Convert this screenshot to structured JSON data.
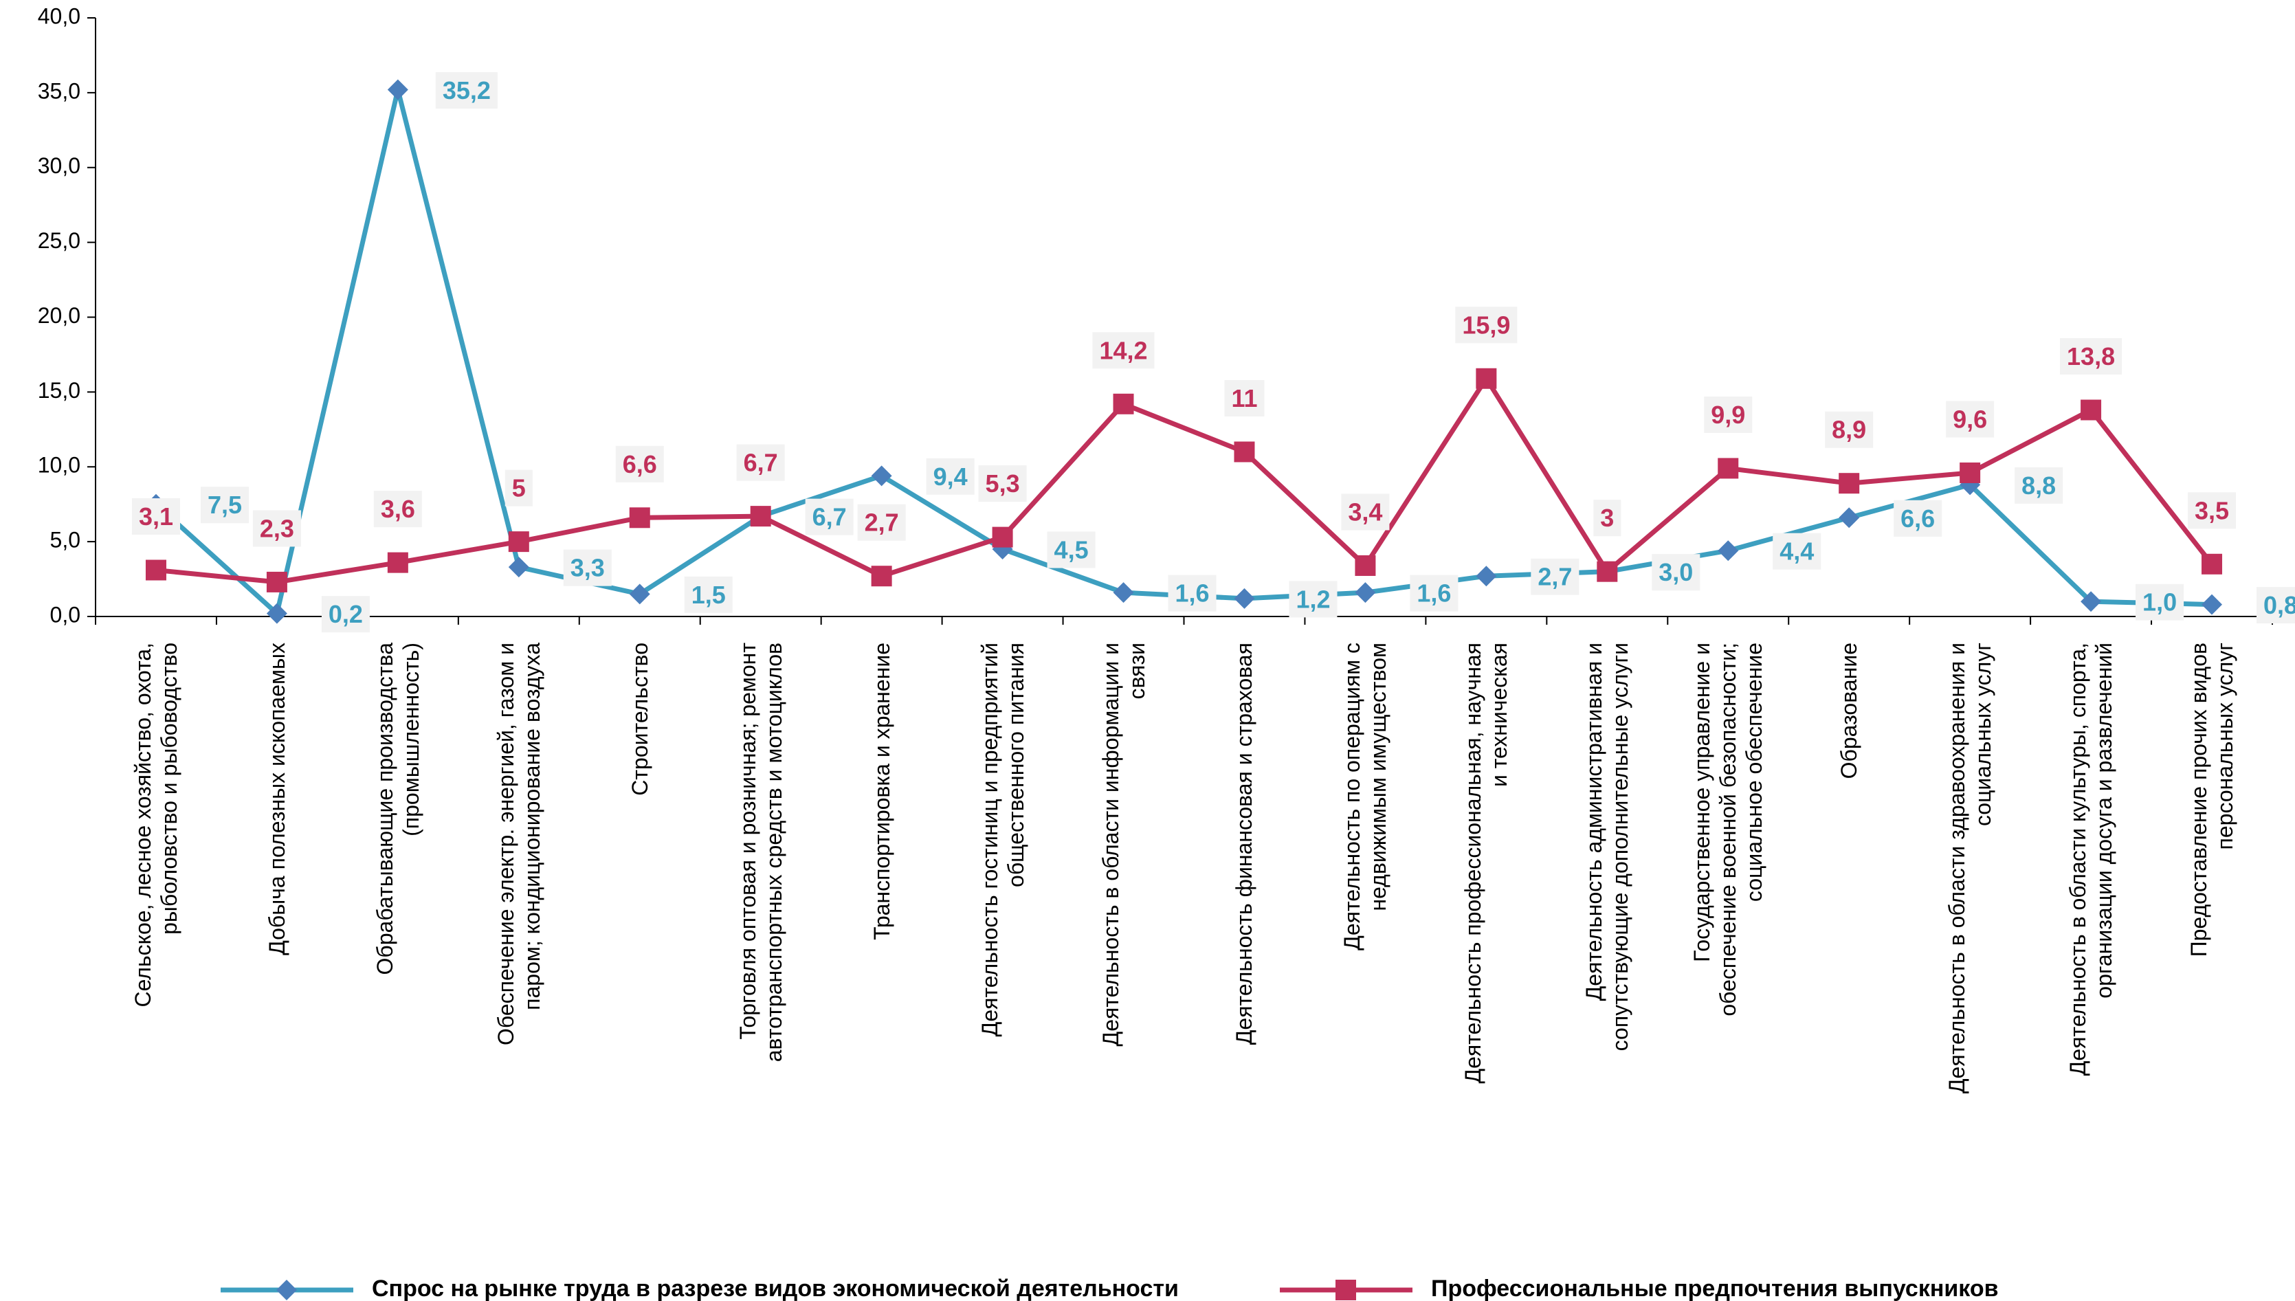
{
  "chart_data": {
    "type": "line",
    "categories": [
      "Сельское, лесное хозяйство, охота,\nрыболовство и рыбоводство",
      "Добыча полезных ископаемых",
      "Обрабатывающие производства\n(промышленность)",
      "Обеспечение электр. энергией, газом и\nпаром; кондиционирование воздуха",
      "Строительство",
      "Торговля оптовая и розничная; ремонт\nавтотранспортных средств и мотоциклов",
      "Транспортировка и хранение",
      "Деятельность гостиниц и предприятий\nобщественного питания",
      "Деятельность в области информации и\nсвязи",
      "Деятельность финансовая и страховая",
      "Деятельность по операциям с\nнедвижимым имуществом",
      "Деятельность профессиональная, научная\nи техническая",
      "Деятельность административная и\nсопутствующие дополнительные услуги",
      "Государственное управление и\nобеспечение военной безопасности;\nсоциальное обеспечение",
      "Образование",
      "Деятельность в области здравоохранения и\nсоциальных услуг",
      "Деятельность в области культуры, спорта,\nорганизации досуга и развлечений",
      "Предоставление прочих видов\nперсональных услуг"
    ],
    "series": [
      {
        "name": "Спрос на рынке труда в разрезе видов экономической деятельности",
        "color": "#3d9fc0",
        "marker_color": "#4a7ebb",
        "marker": "diamond",
        "label_position": "right",
        "values": [
          7.5,
          0.2,
          35.2,
          3.3,
          1.5,
          6.7,
          9.4,
          4.5,
          1.6,
          1.2,
          1.6,
          2.7,
          3.0,
          4.4,
          6.6,
          8.8,
          1.0,
          0.8
        ],
        "value_labels": [
          "7,5",
          "0,2",
          "35,2",
          "3,3",
          "1,5",
          "6,7",
          "9,4",
          "4,5",
          "1,6",
          "1,2",
          "1,6",
          "2,7",
          "3,0",
          "4,4",
          "6,6",
          "8,8",
          "1,0",
          "0,8"
        ]
      },
      {
        "name": "Профессиональные предпочтения выпускников",
        "color": "#c0305a",
        "marker_color": "#c0305a",
        "marker": "square",
        "label_position": "above",
        "values": [
          3.1,
          2.3,
          3.6,
          5,
          6.6,
          6.7,
          2.7,
          5.3,
          14.2,
          11,
          3.4,
          15.9,
          3,
          9.9,
          8.9,
          9.6,
          13.8,
          3.5
        ],
        "value_labels": [
          "3,1",
          "2,3",
          "3,6",
          "5",
          "6,6",
          "6,7",
          "2,7",
          "5,3",
          "14,2",
          "11",
          "3,4",
          "15,9",
          "3",
          "9,9",
          "8,9",
          "9,6",
          "13,8",
          "3,5"
        ]
      }
    ],
    "ylim": [
      0,
      40
    ],
    "yticks": [
      {
        "value": 0,
        "label": "0,0"
      },
      {
        "value": 5,
        "label": "5,0"
      },
      {
        "value": 10,
        "label": "10,0"
      },
      {
        "value": 15,
        "label": "15,0"
      },
      {
        "value": 20,
        "label": "20,0"
      },
      {
        "value": 25,
        "label": "25,0"
      },
      {
        "value": 30,
        "label": "30,0"
      },
      {
        "value": 35,
        "label": "35,0"
      },
      {
        "value": 40,
        "label": "40,0"
      }
    ],
    "grid": false,
    "legend": "bottom"
  }
}
